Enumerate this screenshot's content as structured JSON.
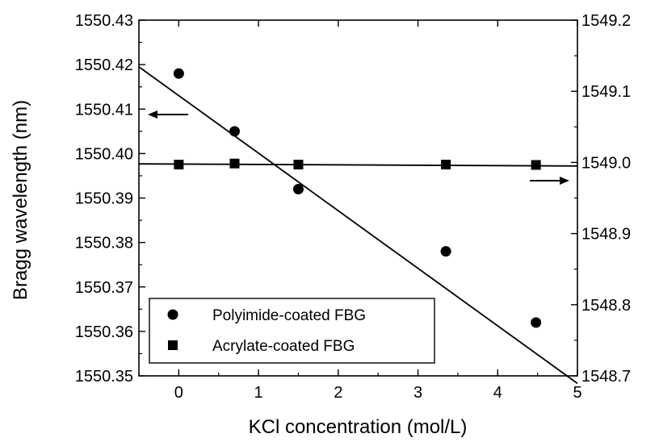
{
  "chart_data": {
    "type": "scatter",
    "xlabel": "KCl concentration (mol/L)",
    "ylabel": "Bragg wavelength (nm)",
    "x_axis": {
      "range": [
        -0.5,
        5
      ],
      "ticks": [
        0,
        1,
        2,
        3,
        4,
        5
      ],
      "tick_labels": [
        "0",
        "1",
        "2",
        "3",
        "4",
        "5"
      ]
    },
    "y_left": {
      "range": [
        1550.35,
        1550.43
      ],
      "ticks": [
        1550.35,
        1550.36,
        1550.37,
        1550.38,
        1550.39,
        1550.4,
        1550.41,
        1550.42,
        1550.43
      ],
      "tick_labels": [
        "1550.35",
        "1550.36",
        "1550.37",
        "1550.38",
        "1550.39",
        "1550.40",
        "1550.41",
        "1550.42",
        "1550.43"
      ]
    },
    "y_right": {
      "range": [
        1548.7,
        1549.2
      ],
      "ticks": [
        1548.7,
        1548.8,
        1548.9,
        1549.0,
        1549.1,
        1549.2
      ],
      "tick_labels": [
        "1548.7",
        "1548.8",
        "1548.9",
        "1549.0",
        "1549.1",
        "1549.2"
      ]
    },
    "series": [
      {
        "name": "Polyimide-coated FBG",
        "marker": "circle",
        "axis": "left",
        "x": [
          0,
          0.7,
          1.5,
          3.35,
          4.48
        ],
        "y": [
          1550.418,
          1550.405,
          1550.392,
          1550.378,
          1550.362
        ],
        "fit": {
          "x": [
            -0.5,
            5
          ],
          "y": [
            1550.4195,
            1550.3483
          ]
        }
      },
      {
        "name": "Acrylate-coated FBG",
        "marker": "square",
        "axis": "right",
        "x": [
          0,
          0.7,
          1.5,
          3.35,
          4.48
        ],
        "y": [
          1548.997,
          1548.9985,
          1548.997,
          1548.997,
          1548.9965
        ],
        "fit": {
          "x": [
            -0.5,
            5
          ],
          "y": [
            1548.998,
            1548.995
          ]
        }
      }
    ],
    "arrows": [
      {
        "direction": "left",
        "points_to": "left-axis"
      },
      {
        "direction": "right",
        "points_to": "right-axis"
      }
    ],
    "legend_position": "bottom-left",
    "grid": false,
    "color": "#000000"
  }
}
